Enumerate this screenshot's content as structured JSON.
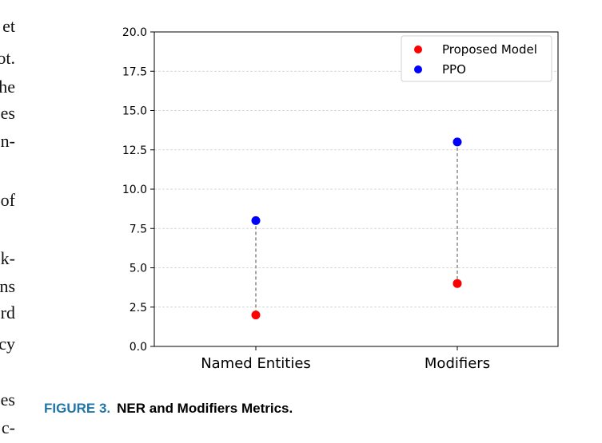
{
  "margin_fragments": [
    "et",
    "ot.",
    "he",
    "es",
    "n-",
    "of",
    "k-",
    "ns",
    "rd",
    "cy",
    "es",
    "c-"
  ],
  "caption": {
    "label": "FIGURE 3.",
    "text": "NER and Modifiers Metrics."
  },
  "chart_data": {
    "type": "scatter",
    "categories": [
      "Named Entities",
      "Modifiers"
    ],
    "series": [
      {
        "name": "Proposed Model",
        "color": "#ff0000",
        "values": [
          2,
          4
        ]
      },
      {
        "name": "PPO",
        "color": "#0000ff",
        "values": [
          8,
          13
        ]
      }
    ],
    "ylim": [
      0,
      20
    ],
    "yticks": [
      "0.0",
      "2.5",
      "5.0",
      "7.5",
      "10.0",
      "12.5",
      "15.0",
      "17.5",
      "20.0"
    ],
    "grid": "horizontal dashed",
    "connectors": "dashed gray line between series per category",
    "legend": "top-right"
  }
}
